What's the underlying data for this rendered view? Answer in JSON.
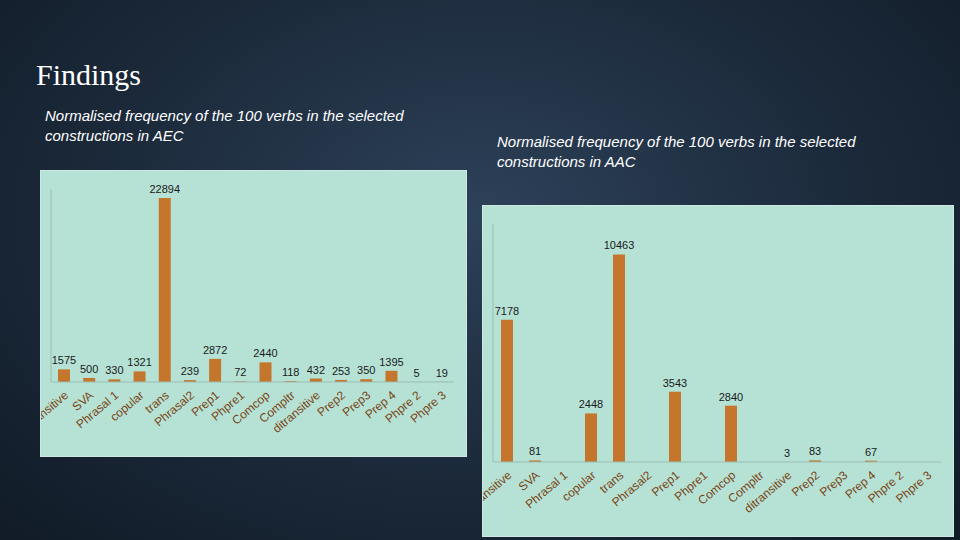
{
  "title": "Findings",
  "chart_data": [
    {
      "type": "bar",
      "title": "Normalised frequency of the 100 verbs in the selected constructions in AEC",
      "categories": [
        "Intransitive",
        "SVA",
        "Phrasal 1",
        "copular",
        "trans",
        "Phrasal2",
        "Prep1",
        "Phpre1",
        "Comcop",
        "Compltr",
        "ditransitive",
        "Prep2",
        "Prep3",
        "Prep 4",
        "Phpre 2",
        "Phpre 3"
      ],
      "values": [
        1575,
        500,
        330,
        1321,
        22894,
        239,
        2872,
        72,
        2440,
        118,
        432,
        253,
        350,
        1395,
        5,
        19
      ],
      "color": "#c4772c",
      "ylim": [
        0,
        24000
      ],
      "data_labels": true,
      "tick_labels": "x"
    },
    {
      "type": "bar",
      "title": "Normalised frequency of the 100 verbs in the selected constructions in AAC",
      "categories": [
        "Intransitive",
        "SVA",
        "Phrasal 1",
        "copular",
        "trans",
        "Phrasal2",
        "Prep1",
        "Phpre1",
        "Comcop",
        "Compltr",
        "ditransitive",
        "Prep2",
        "Prep3",
        "Prep 4",
        "Phpre 2",
        "Phpre 3"
      ],
      "values": [
        7178,
        81,
        0,
        2448,
        10463,
        0,
        3543,
        0,
        2840,
        0,
        3,
        83,
        0,
        67,
        0,
        0
      ],
      "color": "#c4772c",
      "ylim": [
        0,
        12000
      ],
      "data_labels": true,
      "tick_labels": "x"
    }
  ]
}
